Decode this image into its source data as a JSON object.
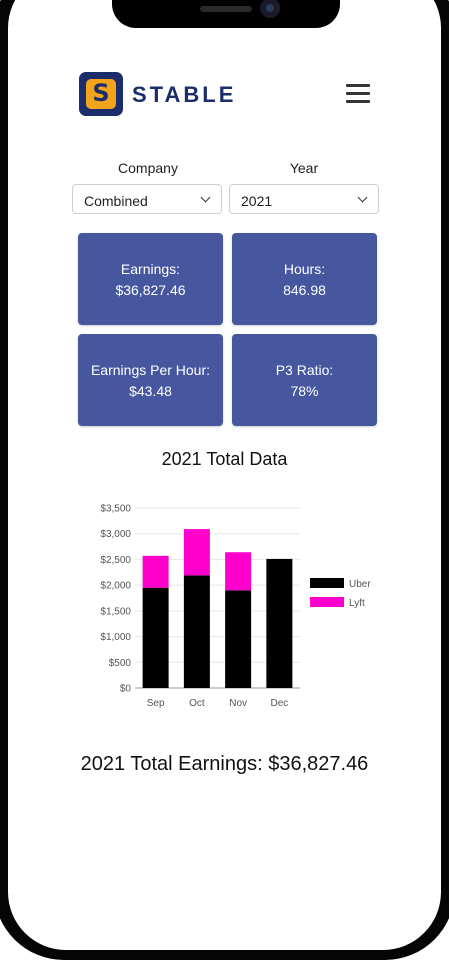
{
  "app": {
    "name": "STABLE",
    "logo_letter": "S"
  },
  "filters": {
    "company_label": "Company",
    "company_value": "Combined",
    "year_label": "Year",
    "year_value": "2021"
  },
  "stats": [
    {
      "title": "Earnings:",
      "value": "$36,827.46"
    },
    {
      "title": "Hours:",
      "value": "846.98"
    },
    {
      "title": "Earnings Per Hour:",
      "value": "$43.48"
    },
    {
      "title": "P3 Ratio:",
      "value": "78%"
    }
  ],
  "chart_section_title": "2021 Total Data",
  "chart_data": {
    "type": "bar",
    "stacked": true,
    "categories": [
      "Sep",
      "Oct",
      "Nov",
      "Dec"
    ],
    "series": [
      {
        "name": "Uber",
        "color": "#000000",
        "values": [
          1950,
          2190,
          1900,
          2510
        ]
      },
      {
        "name": "Lyft",
        "color": "#ff00cc",
        "values": [
          620,
          900,
          740,
          0
        ]
      }
    ],
    "ylim": [
      0,
      3500
    ],
    "yticks": [
      "$0",
      "$500",
      "$1,000",
      "$1,500",
      "$2,000",
      "$2,500",
      "$3,000",
      "$3,500"
    ],
    "ytick_values": [
      0,
      500,
      1000,
      1500,
      2000,
      2500,
      3000,
      3500
    ],
    "legend": "right",
    "grid": true
  },
  "total_earnings_text": "2021 Total Earnings: $36,827.46"
}
